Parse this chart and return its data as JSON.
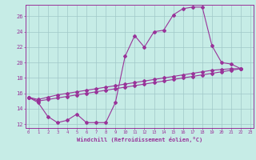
{
  "xlabel": "Windchill (Refroidissement éolien,°C)",
  "background_color": "#c6ece6",
  "grid_color": "#a0c8c8",
  "line_color": "#993399",
  "x_min": 0,
  "x_max": 23,
  "y_min": 11.5,
  "y_max": 27.5,
  "yticks": [
    12,
    14,
    16,
    18,
    20,
    22,
    24,
    26
  ],
  "series_max": [
    [
      0,
      15.5
    ],
    [
      1,
      14.8
    ],
    [
      2,
      13.0
    ],
    [
      3,
      12.2
    ],
    [
      4,
      12.5
    ],
    [
      5,
      13.3
    ],
    [
      6,
      12.2
    ],
    [
      7,
      12.2
    ],
    [
      8,
      12.2
    ],
    [
      9,
      14.8
    ],
    [
      10,
      20.8
    ],
    [
      11,
      23.5
    ],
    [
      12,
      22.0
    ],
    [
      13,
      24.0
    ],
    [
      14,
      24.2
    ],
    [
      15,
      26.2
    ],
    [
      16,
      27.0
    ],
    [
      17,
      27.2
    ],
    [
      18,
      27.2
    ],
    [
      19,
      22.2
    ],
    [
      20,
      20.0
    ],
    [
      21,
      19.8
    ],
    [
      22,
      19.2
    ]
  ],
  "series_avg": [
    [
      0,
      15.5
    ],
    [
      1,
      15.2
    ],
    [
      2,
      15.5
    ],
    [
      3,
      15.8
    ],
    [
      4,
      16.0
    ],
    [
      5,
      16.2
    ],
    [
      6,
      16.4
    ],
    [
      7,
      16.6
    ],
    [
      8,
      16.8
    ],
    [
      9,
      17.0
    ],
    [
      10,
      17.2
    ],
    [
      11,
      17.4
    ],
    [
      12,
      17.6
    ],
    [
      13,
      17.8
    ],
    [
      14,
      18.0
    ],
    [
      15,
      18.2
    ],
    [
      16,
      18.4
    ],
    [
      17,
      18.6
    ],
    [
      18,
      18.8
    ],
    [
      19,
      19.0
    ],
    [
      20,
      19.1
    ],
    [
      21,
      19.2
    ],
    [
      22,
      19.2
    ]
  ],
  "series_min": [
    [
      0,
      15.5
    ],
    [
      1,
      15.0
    ],
    [
      2,
      15.2
    ],
    [
      3,
      15.4
    ],
    [
      4,
      15.6
    ],
    [
      5,
      15.8
    ],
    [
      6,
      16.0
    ],
    [
      7,
      16.2
    ],
    [
      8,
      16.4
    ],
    [
      9,
      16.6
    ],
    [
      10,
      16.8
    ],
    [
      11,
      17.0
    ],
    [
      12,
      17.2
    ],
    [
      13,
      17.4
    ],
    [
      14,
      17.6
    ],
    [
      15,
      17.8
    ],
    [
      16,
      18.0
    ],
    [
      17,
      18.2
    ],
    [
      18,
      18.4
    ],
    [
      19,
      18.6
    ],
    [
      20,
      18.8
    ],
    [
      21,
      19.0
    ],
    [
      22,
      19.2
    ]
  ]
}
